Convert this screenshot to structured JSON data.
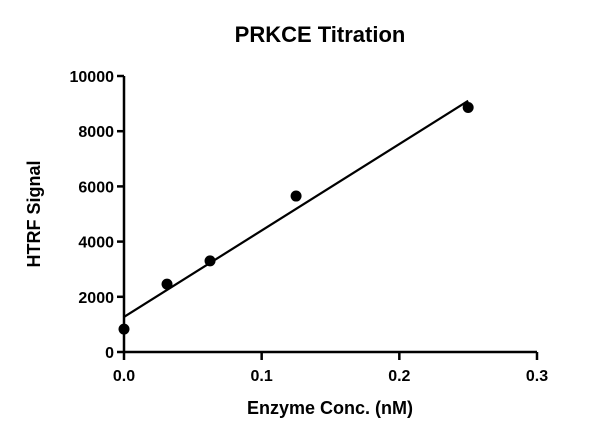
{
  "chart_data": {
    "type": "scatter",
    "title": "PRKCE Titration",
    "xlabel": "Enzyme Conc. (nM)",
    "ylabel": "HTRF Signal",
    "xlim": [
      0,
      0.3
    ],
    "ylim": [
      0,
      10000
    ],
    "x_ticks": [
      "0.0",
      "0.1",
      "0.2",
      "0.3"
    ],
    "y_ticks": [
      "0",
      "2000",
      "4000",
      "6000",
      "8000",
      "10000"
    ],
    "grid": false,
    "legend": null,
    "series": [
      {
        "name": "HTRF Signal",
        "marker": "filled-circle",
        "x": [
          0,
          0.03125,
          0.0625,
          0.125,
          0.25
        ],
        "y": [
          830,
          2460,
          3300,
          5650,
          8860
        ]
      }
    ],
    "fit_line": {
      "type": "linear",
      "x": [
        0,
        0.25
      ],
      "y": [
        1270,
        9100
      ]
    }
  }
}
